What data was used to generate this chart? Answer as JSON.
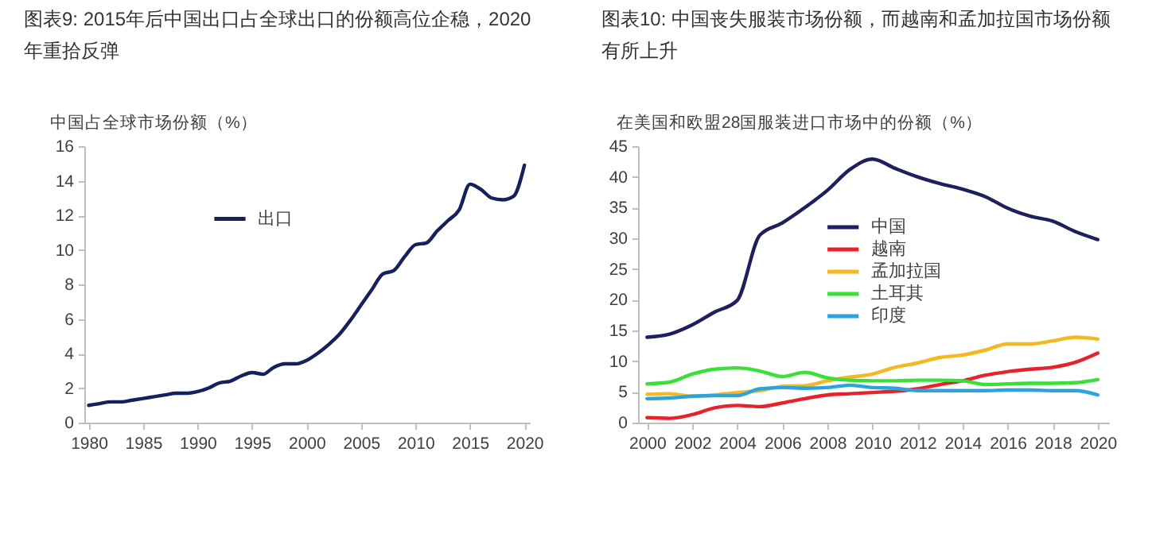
{
  "chart_data": [
    {
      "type": "line",
      "title": "图表9: 2015年后中国出口占全球出口的份额高位企稳，2020年重拾反弹",
      "ylabel": "中国占全球市场份额（%）",
      "x": [
        1980,
        1981,
        1982,
        1983,
        1984,
        1985,
        1986,
        1987,
        1988,
        1989,
        1990,
        1991,
        1992,
        1993,
        1994,
        1995,
        1996,
        1997,
        1998,
        1999,
        2000,
        2001,
        2002,
        2003,
        2004,
        2005,
        2006,
        2007,
        2008,
        2009,
        2010,
        2011,
        2012,
        2013,
        2014,
        2015,
        2016,
        2017,
        2018,
        2019,
        2020
      ],
      "series": [
        {
          "name": "出口",
          "color": "#14215e",
          "values": [
            1.0,
            1.1,
            1.2,
            1.2,
            1.3,
            1.4,
            1.5,
            1.6,
            1.7,
            1.7,
            1.8,
            2.0,
            2.3,
            2.4,
            2.7,
            2.9,
            2.8,
            3.2,
            3.4,
            3.4,
            3.6,
            4.0,
            4.5,
            5.1,
            5.9,
            6.8,
            7.7,
            8.6,
            8.8,
            9.6,
            10.3,
            10.4,
            11.1,
            11.7,
            12.3,
            13.8,
            13.5,
            13.0,
            12.9,
            13.1,
            14.9
          ]
        }
      ],
      "xlim": [
        1979.6,
        2020.5
      ],
      "xticks": [
        1980,
        1985,
        1990,
        1995,
        2000,
        2005,
        2010,
        2015,
        2020
      ],
      "ylim": [
        0,
        16
      ],
      "yticks": [
        0,
        2,
        4,
        6,
        8,
        10,
        12,
        14,
        16
      ],
      "grid": false,
      "legend": "top left",
      "line_style": "solid"
    },
    {
      "type": "line",
      "title": "图表10: 中国丧失服装市场份额，而越南和孟加拉国市场份额有所上升",
      "ylabel": "在美国和欧盟28国服装进口市场中的份额（%）",
      "x": [
        2000,
        2001,
        2002,
        2003,
        2004,
        2005,
        2006,
        2007,
        2008,
        2009,
        2010,
        2011,
        2012,
        2013,
        2014,
        2015,
        2016,
        2017,
        2018,
        2019,
        2020
      ],
      "series": [
        {
          "name": "中国",
          "color": "#1d1f5e",
          "values": [
            13.9,
            14.4,
            15.9,
            18.0,
            19.9,
            30.5,
            32.5,
            35.0,
            37.8,
            41.2,
            42.9,
            41.4,
            40.0,
            38.9,
            38.0,
            36.8,
            34.9,
            33.6,
            32.8,
            31.1,
            29.8
          ]
        },
        {
          "name": "越南",
          "color": "#e8222b",
          "values": [
            0.8,
            0.7,
            1.3,
            2.4,
            2.8,
            2.6,
            3.2,
            3.9,
            4.5,
            4.7,
            4.9,
            5.1,
            5.5,
            6.2,
            6.8,
            7.7,
            8.3,
            8.7,
            9.0,
            9.8,
            11.3
          ]
        },
        {
          "name": "孟加拉国",
          "color": "#f5b820",
          "values": [
            4.6,
            4.7,
            4.3,
            4.5,
            4.9,
            5.2,
            5.9,
            6.0,
            6.8,
            7.4,
            7.9,
            9.0,
            9.7,
            10.6,
            11.0,
            11.8,
            12.8,
            12.8,
            13.3,
            13.9,
            13.6
          ]
        },
        {
          "name": "土耳其",
          "color": "#38e038",
          "values": [
            6.3,
            6.6,
            7.9,
            8.7,
            8.9,
            8.4,
            7.5,
            8.2,
            7.3,
            6.9,
            6.8,
            6.8,
            6.9,
            6.9,
            6.8,
            6.2,
            6.3,
            6.4,
            6.4,
            6.5,
            7.0
          ]
        },
        {
          "name": "印度",
          "color": "#2ba4de",
          "values": [
            3.9,
            4.0,
            4.3,
            4.4,
            4.4,
            5.5,
            5.7,
            5.6,
            5.7,
            6.1,
            5.7,
            5.6,
            5.2,
            5.2,
            5.2,
            5.2,
            5.3,
            5.3,
            5.2,
            5.2,
            4.5
          ]
        }
      ],
      "xlim": [
        1999.6,
        2020.5
      ],
      "xticks": [
        2000,
        2002,
        2004,
        2006,
        2008,
        2010,
        2012,
        2014,
        2016,
        2018,
        2020
      ],
      "ylim": [
        0,
        45
      ],
      "yticks": [
        0,
        5,
        10,
        15,
        20,
        25,
        30,
        35,
        40,
        45
      ],
      "grid": false,
      "legend": "top",
      "line_style": "solid"
    }
  ]
}
